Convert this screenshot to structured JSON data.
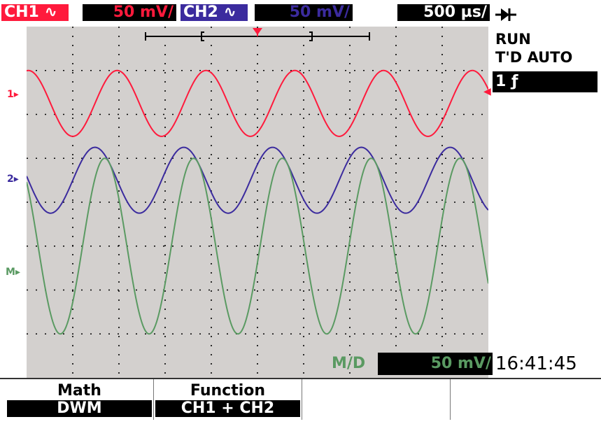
{
  "header": {
    "ch1_label": "CH1 ∿",
    "ch1_scale": "50 mV/",
    "ch2_label": "CH2 ∿",
    "ch2_scale": "50 mV/",
    "timebase": "500 µs/"
  },
  "status": {
    "mode": "RUN",
    "trigger": "T'D AUTO",
    "trigger_source": "1 ƒ"
  },
  "markers": {
    "ch1": "1",
    "ch2": "2",
    "math": "M"
  },
  "math_scale": {
    "label": "M/D",
    "value": "50 mV/"
  },
  "clock": "16:41:45",
  "softkeys": [
    {
      "top": "Math",
      "bottom": "DWM"
    },
    {
      "top": "Function",
      "bottom": "CH1 + CH2"
    },
    {
      "top": "",
      "bottom": ""
    },
    {
      "top": "",
      "bottom": ""
    }
  ],
  "colors": {
    "ch1": "#ff1a3c",
    "ch2": "#3b2b9e",
    "math": "#5a9a62",
    "screen_bg": "#d3d0ce",
    "grid": "#000000"
  },
  "chart_data": {
    "type": "line",
    "series": [
      {
        "name": "CH1",
        "cycles": 5.2,
        "amplitude_div": 0.75,
        "offset_div": 1.75,
        "phase_cycles": 0.23
      },
      {
        "name": "CH2",
        "cycles": 5.2,
        "amplitude_div": 0.75,
        "offset_div": 3.5,
        "phase_cycles": 0.48
      },
      {
        "name": "M",
        "cycles": 5.2,
        "amplitude_div": 2.0,
        "offset_div": 5.0,
        "phase_cycles": 0.37
      }
    ],
    "grid": true,
    "divisions_x": 10,
    "divisions_y": 8
  }
}
